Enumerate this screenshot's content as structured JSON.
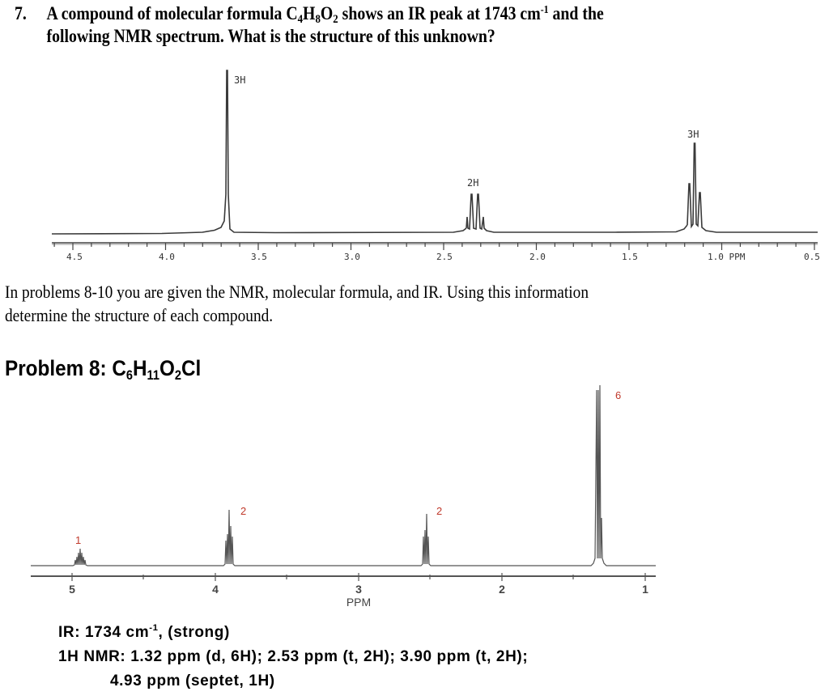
{
  "question7": {
    "number": "7.",
    "text_a": "A compound of molecular formula C",
    "formula_c": "4",
    "text_h": "H",
    "formula_h": "8",
    "text_o": "O",
    "formula_o": "2",
    "text_b": " shows an IR peak at 1743 cm",
    "sup": "-1",
    "text_c": " and the",
    "line2": "following NMR spectrum.  What is the structure of this unknown?"
  },
  "intro": {
    "line1": "In problems 8-10 you are given the NMR, molecular formula, and IR.  Using this information",
    "line2": "determine the structure of each compound."
  },
  "problem8": {
    "label": "Problem 8: C",
    "c_sub": "6",
    "h": "H",
    "h_sub": "11",
    "o": "O",
    "o_sub": "2",
    "cl": "Cl"
  },
  "problem8_data": {
    "ir_label": "IR:  1734 cm",
    "ir_sup": "-1",
    "ir_rest": ", (strong)",
    "nmr_line1": "1H NMR:  1.32 ppm (d, 6H); 2.53 ppm (t, 2H); 3.90 ppm (t, 2H);",
    "nmr_line2": "4.93 ppm (septet, 1H)"
  },
  "chart_data": [
    {
      "type": "line",
      "title": "1H NMR spectrum (Problem 7, C4H8O2)",
      "xlabel": "PPM",
      "ylabel": "",
      "xlim": [
        4.6,
        0.5
      ],
      "x_reversed": true,
      "grid": false,
      "tick_labels": [
        "4.5",
        "4.0",
        "3.5",
        "3.0",
        "2.5",
        "2.0",
        "1.5",
        "1.0 PPM",
        "0.5"
      ],
      "tick_values": [
        4.5,
        4.0,
        3.5,
        3.0,
        2.5,
        2.0,
        1.5,
        1.0,
        0.5
      ],
      "peaks": [
        {
          "shift": 3.67,
          "multiplicity": "singlet",
          "integration_label": "3H",
          "relative_height": 1.0
        },
        {
          "shift": 2.32,
          "multiplicity": "quartet",
          "integration_label": "2H",
          "relative_height": 0.25
        },
        {
          "shift": 1.15,
          "multiplicity": "triplet",
          "integration_label": "3H",
          "relative_height": 0.55
        }
      ],
      "annotations": [
        "3H",
        "2H",
        "3H"
      ]
    },
    {
      "type": "line",
      "title": "1H NMR spectrum (Problem 8, C6H11O2Cl)",
      "xlabel": "PPM",
      "ylabel": "",
      "xlim": [
        5.3,
        0.95
      ],
      "x_reversed": true,
      "grid": false,
      "tick_labels": [
        "5",
        "4",
        "3",
        "2",
        "1"
      ],
      "tick_values": [
        5,
        4,
        3,
        2,
        1
      ],
      "peaks": [
        {
          "shift": 4.93,
          "multiplicity": "septet",
          "integration_label": "1",
          "relative_height": 0.28
        },
        {
          "shift": 3.9,
          "multiplicity": "triplet",
          "integration_label": "2",
          "relative_height": 0.29
        },
        {
          "shift": 2.53,
          "multiplicity": "triplet",
          "integration_label": "2",
          "relative_height": 0.29
        },
        {
          "shift": 1.32,
          "multiplicity": "doublet",
          "integration_label": "6",
          "relative_height": 1.0
        }
      ],
      "annotations": [
        "1",
        "2",
        "2",
        "6"
      ],
      "annotation_color": "#c0392b"
    }
  ],
  "colors": {
    "text": "#000000",
    "spectrum_line": "#333333",
    "integration_label_red": "#c0392b"
  },
  "spec1_labels": {
    "ticks": [
      "4.5",
      "4.0",
      "3.5",
      "3.0",
      "2.5",
      "2.0",
      "1.5",
      "1.0 PPM",
      "0.5"
    ],
    "peak_labels": [
      "3H",
      "2H",
      "3H"
    ]
  },
  "spec2_labels": {
    "ticks": [
      "5",
      "4",
      "3",
      "2",
      "1"
    ],
    "axis_title": "PPM",
    "peak_labels": [
      "1",
      "2",
      "2",
      "6"
    ]
  }
}
